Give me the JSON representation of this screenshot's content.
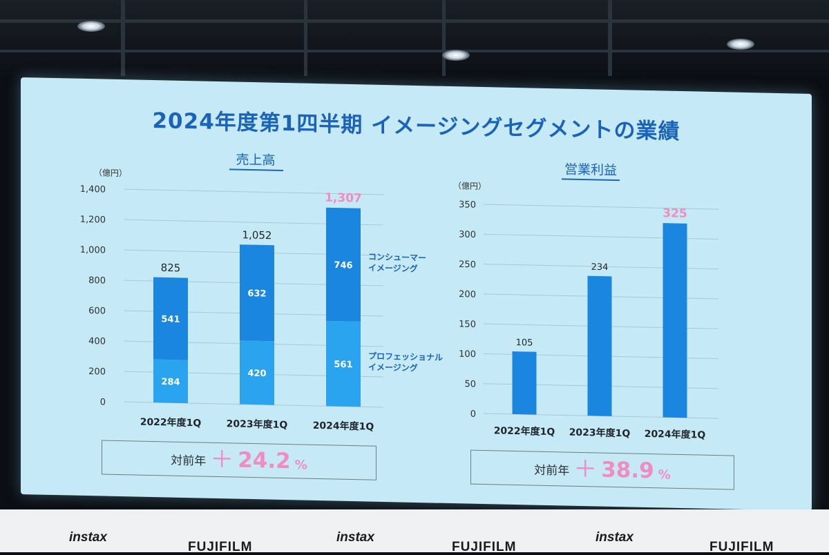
{
  "slide": {
    "title": "2024年度第1四半期 イメージングセグメントの業績"
  },
  "chart_data": [
    {
      "type": "bar",
      "stacked": true,
      "title": "売上高",
      "ylabel": "（億円）",
      "ylim": [
        0,
        1400
      ],
      "yticks": [
        "1,400",
        "1,200",
        "1,000",
        "800",
        "600",
        "400",
        "200",
        "0"
      ],
      "categories": [
        "2022年度1Q",
        "2023年度1Q",
        "2024年度1Q"
      ],
      "series": [
        {
          "name": "プロフェッショナル\nイメージング",
          "values": [
            284,
            420,
            561
          ],
          "color": "#2aa4ee"
        },
        {
          "name": "コンシューマー\nイメージング",
          "values": [
            541,
            632,
            746
          ],
          "color": "#1b86de"
        }
      ],
      "totals": [
        "825",
        "1,052",
        "1,307"
      ],
      "highlight_index": 2
    },
    {
      "type": "bar",
      "title": "営業利益",
      "ylabel": "（億円）",
      "ylim": [
        0,
        350
      ],
      "yticks": [
        "350",
        "300",
        "250",
        "200",
        "150",
        "100",
        "50",
        "0"
      ],
      "categories": [
        "2022年度1Q",
        "2023年度1Q",
        "2024年度1Q"
      ],
      "values": [
        105,
        234,
        325
      ],
      "labels": [
        "105",
        "234",
        "325"
      ],
      "color": "#1b86de",
      "highlight_index": 2
    }
  ],
  "yoy": {
    "sales": {
      "label": "対前年",
      "plus": "＋",
      "value": "24.2",
      "unit": "%"
    },
    "profit": {
      "label": "対前年",
      "plus": "＋",
      "value": "38.9",
      "unit": "%"
    }
  },
  "backdrop": {
    "logos": [
      "instax",
      "FUJIFILM",
      "instax",
      "FUJIFILM",
      "instax",
      "FUJIFILM"
    ]
  }
}
